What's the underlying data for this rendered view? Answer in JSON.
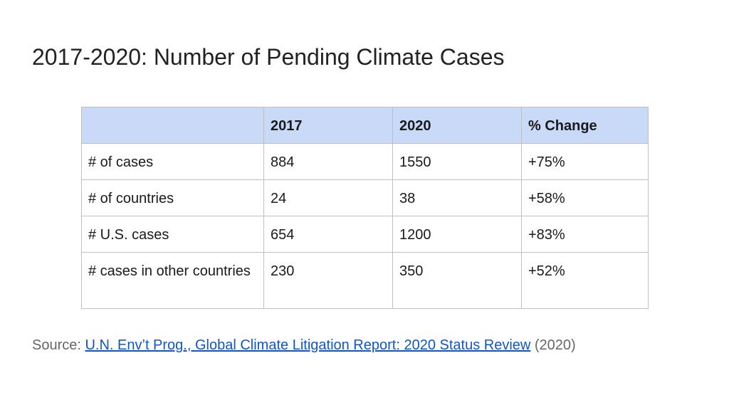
{
  "title": "2017-2020: Number of Pending Climate Cases",
  "table": {
    "headers": [
      "",
      "2017",
      "2020",
      "% Change"
    ],
    "rows": [
      [
        "# of cases",
        "884",
        "1550",
        "+75%"
      ],
      [
        "# of countries",
        "24",
        "38",
        "+58%"
      ],
      [
        "# U.S. cases",
        "654",
        "1200",
        "+83%"
      ],
      [
        "# cases in other countries",
        "230",
        "350",
        "+52%"
      ]
    ],
    "header_bg_color": "#c9daf8"
  },
  "source": {
    "prefix": "Source: ",
    "link_text": "U.N. Env’t Prog., Global Climate Litigation Report: 2020 Status Review",
    "suffix": " (2020)",
    "link_color": "#1155cc"
  }
}
